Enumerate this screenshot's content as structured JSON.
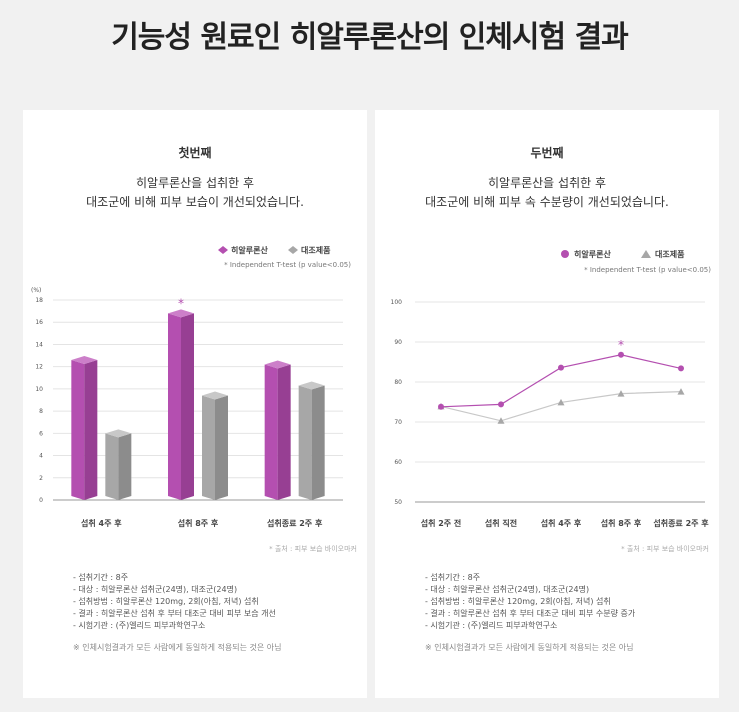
{
  "page_title": "기능성 원료인 히알루론산의 인체시험 결과",
  "panels": [
    {
      "heading": "첫번째",
      "desc_line1": "히알루론산을 섭취한 후",
      "desc_line2": "대조군에 비해 피부 보습이 개선되었습니다.",
      "source": "* 출처 : 피부 보습 바이오마커",
      "notes": [
        "- 섭취기간 : 8주",
        "- 대상 : 히알루론산 섭취군(24명), 대조군(24명)",
        "- 섭취방법 : 히알루론산 120mg, 2회(아침, 저녁) 섭취",
        "- 결과 : 히알루론산 섭취 후 부터 대조군 대비 피부 보습 개선",
        "- 시험기관 : (주)엘리드 피부과학연구소"
      ],
      "disclaimer": "※ 인체시험결과가 모든 사람에게 동일하게 적용되는 것은 아님"
    },
    {
      "heading": "두번째",
      "desc_line1": "히알루론산을 섭취한 후",
      "desc_line2": "대조군에 비해 피부 속 수분량이 개선되었습니다.",
      "source": "* 출처 : 피부 보습 바이오마커",
      "notes": [
        "- 섭취기간 : 8주",
        "- 대상 : 히알루론산 섭취군(24명), 대조군(24명)",
        "- 섭취방법 : 히알루론산 120mg, 2회(아침, 저녁) 섭취",
        "- 결과 : 히알루론산 섭취 후 부터 대조군 대비 피부 수분량 증가",
        "- 시험기관 : (주)엘리드 피부과학연구소"
      ],
      "disclaimer": "※ 인체시험결과가 모든 사람에게 동일하게 적용되는 것은 아님"
    }
  ],
  "colors": {
    "hyaluronic": "#b44fb0",
    "hyaluronic_dark": "#973f93",
    "hyaluronic_light": "#cc7fc9",
    "control": "#a7a7a7",
    "control_dark": "#8c8c8c",
    "control_light": "#c8c8c8",
    "grid": "#e4e4e4"
  },
  "chart_data": [
    {
      "type": "bar",
      "unit": "(%)",
      "categories": [
        "섭취 4주 후",
        "섭취 8주 후",
        "섭취종료 2주 후"
      ],
      "series": [
        {
          "name": "히알루론산",
          "values": [
            12.6,
            16.8,
            12.2
          ]
        },
        {
          "name": "대조제품",
          "values": [
            6.0,
            9.4,
            10.3
          ]
        }
      ],
      "ylim": [
        0,
        18
      ],
      "yticks": [
        0,
        2,
        4,
        6,
        8,
        10,
        12,
        14,
        16,
        18
      ],
      "significant": [
        1
      ],
      "significance_mark": "*",
      "legend_note": "* Independent T-test (p value<0.05)",
      "legend_position": "top-right",
      "grid": true
    },
    {
      "type": "line",
      "categories": [
        "섭취 2주 전",
        "섭취 직전",
        "섭취 4주 후",
        "섭취 8주 후",
        "섭취종료 2주 후"
      ],
      "series": [
        {
          "name": "히알루론산",
          "values": [
            73.8,
            74.4,
            83.6,
            86.8,
            83.4
          ]
        },
        {
          "name": "대조제품",
          "values": [
            73.9,
            70.3,
            74.9,
            77.1,
            77.6
          ]
        }
      ],
      "ylim": [
        50,
        100
      ],
      "yticks": [
        50,
        60,
        70,
        80,
        90,
        100
      ],
      "significant": [
        3
      ],
      "significance_mark": "*",
      "legend_note": "* Independent T-test (p value<0.05)",
      "legend_position": "top-right",
      "grid": true
    }
  ]
}
